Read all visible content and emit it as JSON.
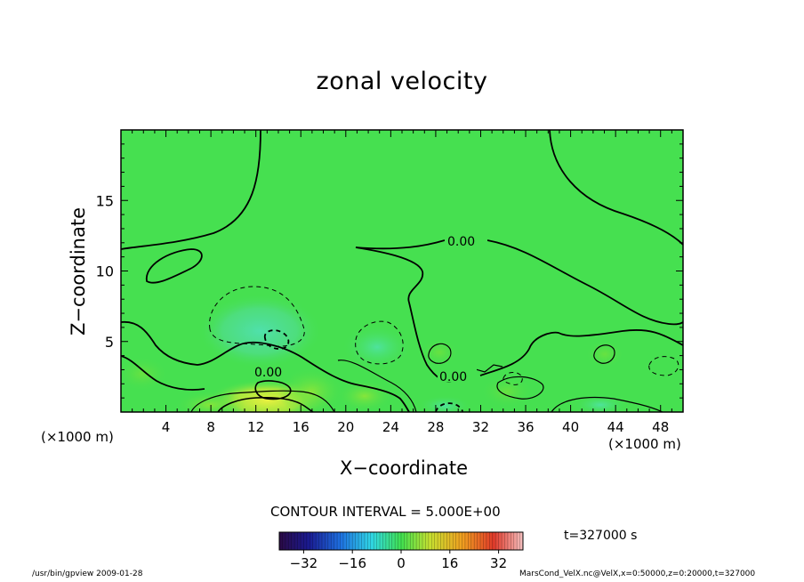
{
  "chart_data": {
    "type": "heatmap",
    "title": "zonal velocity",
    "xlabel": "X−coordinate",
    "ylabel": "Z−coordinate",
    "x_unit_left": "(×1000 m)",
    "x_unit_right": "(×1000 m)",
    "xlim": [
      0,
      50
    ],
    "ylim": [
      0,
      20
    ],
    "x_ticks": [
      "4",
      "8",
      "12",
      "16",
      "20",
      "24",
      "28",
      "32",
      "36",
      "40",
      "44",
      "48"
    ],
    "y_ticks": [
      "5",
      "10",
      "15"
    ],
    "contour_label": "0.00",
    "contour_interval_text": "CONTOUR INTERVAL = 5.000E+00",
    "time_text": "t=327000 s",
    "colorbar": {
      "range": [
        -40,
        40
      ],
      "ticks": [
        "−32",
        "−16",
        "0",
        "16",
        "32"
      ],
      "colors": [
        "#2a0a45",
        "#1a1a90",
        "#1e6fe0",
        "#30d8e6",
        "#40e050",
        "#c8e030",
        "#f0a020",
        "#e03a2a",
        "#f5c0c0"
      ]
    },
    "regions": [
      {
        "x": 12.5,
        "z": 5.5,
        "value": -9
      },
      {
        "x": 23,
        "z": 4.5,
        "value": -6
      },
      {
        "x": 29,
        "z": 0.5,
        "value": -6
      },
      {
        "x": 12,
        "z": 1,
        "value": 12
      },
      {
        "x": 16,
        "z": 0.8,
        "value": 10
      },
      {
        "x": 9,
        "z": 0.4,
        "value": 8
      },
      {
        "x": 28,
        "z": 4,
        "value": 4
      },
      {
        "x": 44,
        "z": 4,
        "value": 3
      }
    ]
  },
  "footer": {
    "left": "/usr/bin/gpview   2009-01-28",
    "right": "MarsCond_VelX.nc@VelX,x=0:50000,z=0:20000,t=327000"
  }
}
